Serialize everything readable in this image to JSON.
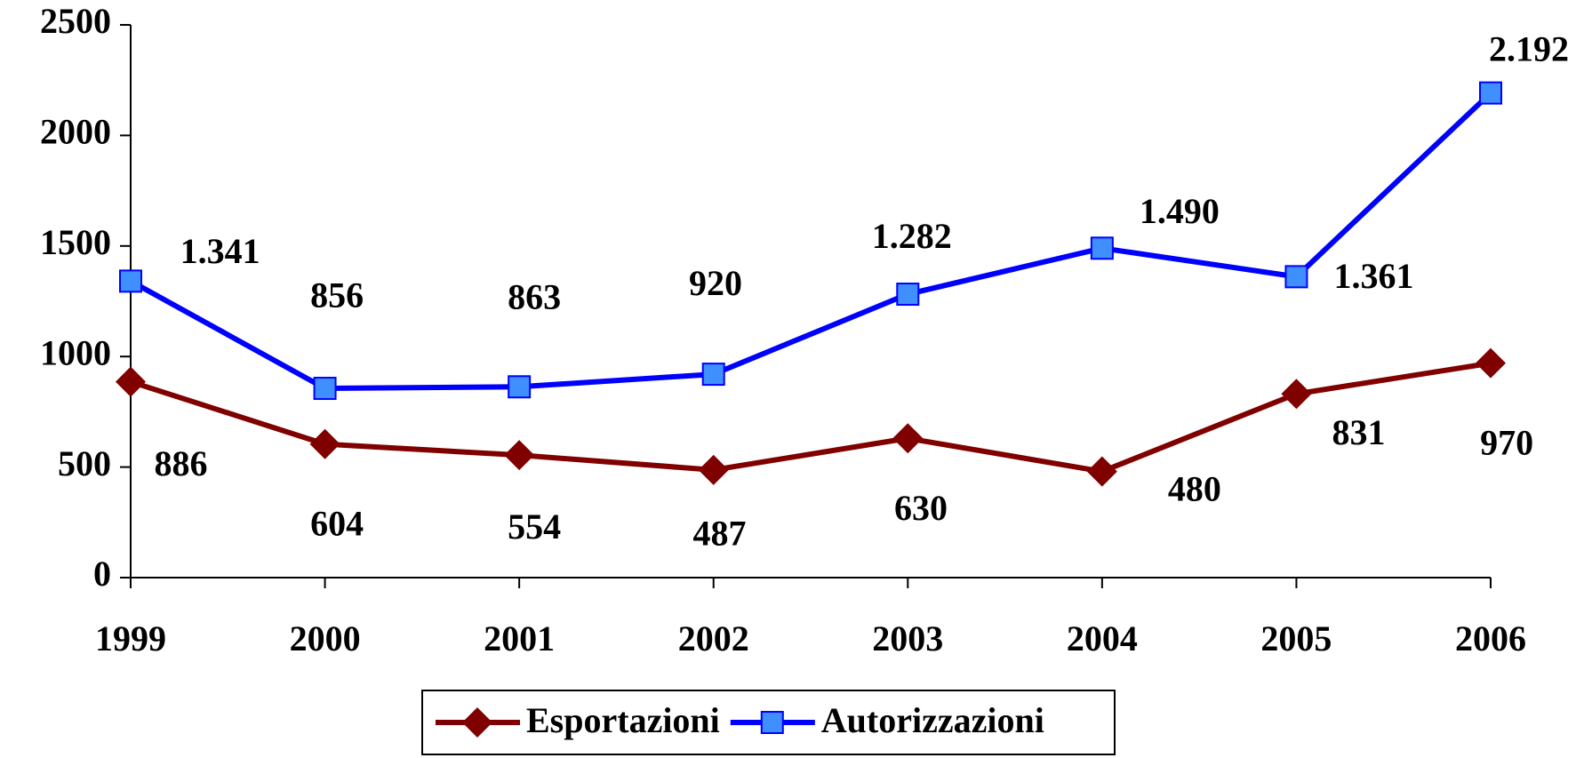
{
  "chart_data": {
    "type": "line",
    "categories": [
      "1999",
      "2000",
      "2001",
      "2002",
      "2003",
      "2004",
      "2005",
      "2006"
    ],
    "series": [
      {
        "name": "Esportazioni",
        "color": "#800000",
        "marker": "diamond",
        "marker_color": "#800000",
        "values": [
          886,
          604,
          554,
          487,
          630,
          480,
          831,
          970
        ]
      },
      {
        "name": "Autorizzazioni",
        "color": "#0000ff",
        "marker": "square",
        "marker_color": "#3f8fff",
        "values": [
          1341,
          856,
          863,
          920,
          1282,
          1490,
          1361,
          2192
        ],
        "value_labels": [
          "1.341",
          "856",
          "863",
          "920",
          "1.282",
          "1.490",
          "1.361",
          "2.192"
        ]
      }
    ],
    "ylim": [
      0,
      2500
    ],
    "yticks": [
      0,
      500,
      1000,
      1500,
      2000,
      2500
    ],
    "legend": "bottom",
    "grid": false
  }
}
